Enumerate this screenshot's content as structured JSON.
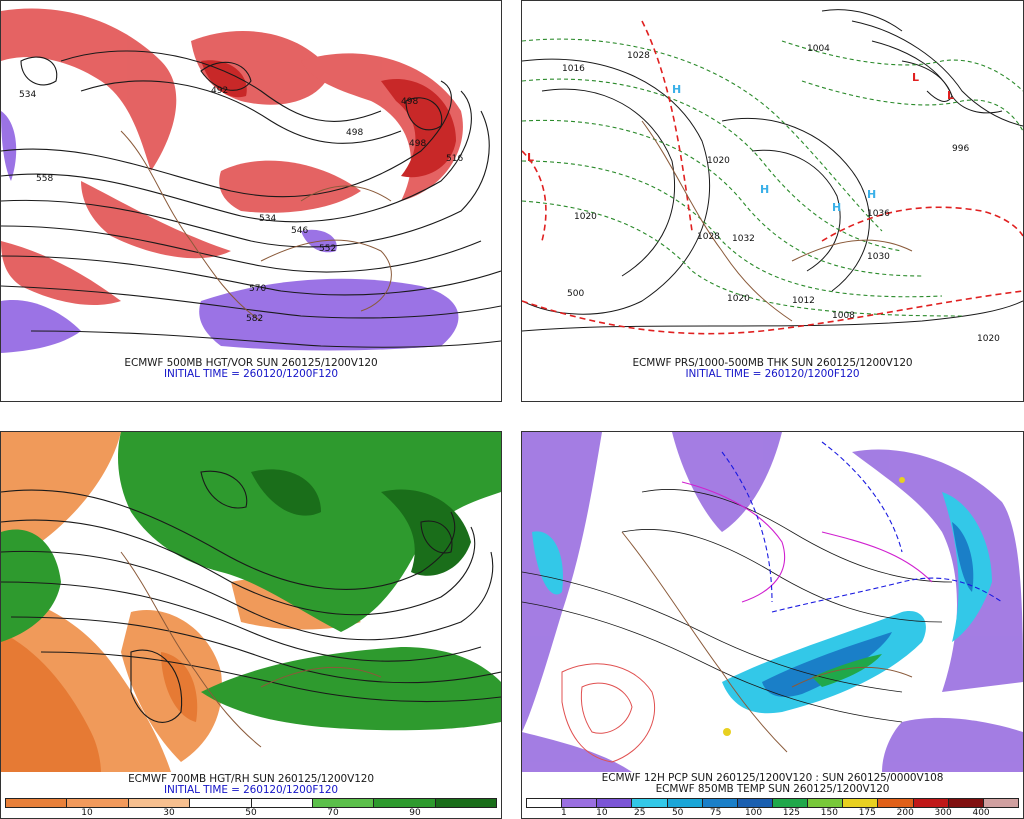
{
  "panels": [
    {
      "id": "p1",
      "caption": "ECMWF 500MB HGT/VOR SUN 260125/1200V120",
      "init": "INITIAL TIME = 260120/1200F120",
      "labels": [
        "534",
        "558",
        "492",
        "498",
        "498",
        "498",
        "516",
        "534",
        "546",
        "552",
        "570",
        "582"
      ]
    },
    {
      "id": "p2",
      "caption": "ECMWF PRS/1000-500MB THK SUN 260125/1200V120",
      "init": "INITIAL TIME = 260120/1200F120",
      "labels": [
        "1016",
        "1028",
        "1004",
        "1020",
        "1020",
        "1028",
        "1032",
        "1036",
        "1030",
        "1020",
        "1012",
        "1008",
        "1020",
        "996",
        "500"
      ]
    },
    {
      "id": "p3",
      "caption": "ECMWF 700MB HGT/RH SUN 260125/1200V120",
      "init": "INITIAL TIME = 260120/1200F120",
      "colorbar": {
        "ticks": [
          "10",
          "30",
          "50",
          "70",
          "90"
        ],
        "colors": [
          "#e8803a",
          "#f29a5c",
          "#f6bf8f",
          "#ffffff",
          "#ffffff",
          "#5bbf4a",
          "#2e9a2e",
          "#1a6e1a"
        ]
      }
    },
    {
      "id": "p4",
      "caption": "ECMWF 12H PCP SUN 260125/1200V120 : SUN 260125/0000V108",
      "init": "ECMWF 850MB TEMP SUN 260125/1200V120",
      "colorbar": {
        "ticks": [
          "1",
          "10",
          "25",
          "50",
          "75",
          "100",
          "125",
          "150",
          "175",
          "200",
          "300",
          "400"
        ],
        "colors": [
          "#ffffff",
          "#9a6fe0",
          "#7b55d6",
          "#33c8e8",
          "#1aa6d8",
          "#1a7fc8",
          "#1a5fb0",
          "#20a84a",
          "#78c83a",
          "#e8d020",
          "#e06018",
          "#c01818",
          "#801010",
          "#d0a0a0"
        ]
      }
    }
  ]
}
